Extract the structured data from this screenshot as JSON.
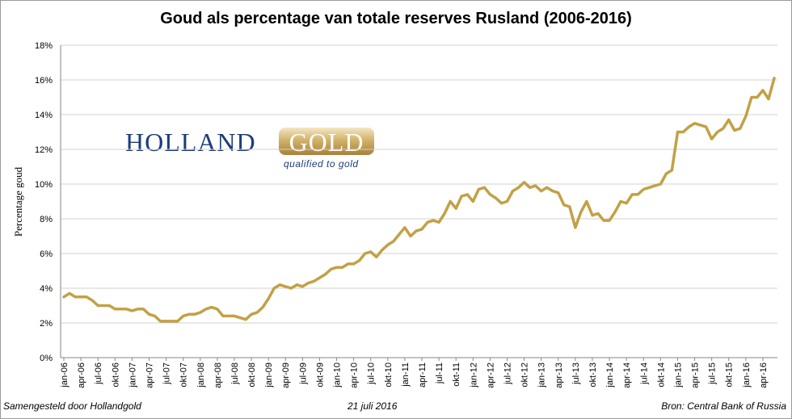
{
  "chart_data": {
    "type": "line",
    "title": "Goud als percentage van totale reserves Rusland (2006-2016)",
    "ylabel": "Percentage goud",
    "xlabel": "",
    "ylim": [
      0,
      18
    ],
    "yticks": [
      0,
      2,
      4,
      6,
      8,
      10,
      12,
      14,
      16,
      18
    ],
    "ytick_labels": [
      "0%",
      "2%",
      "4%",
      "6%",
      "8%",
      "10%",
      "12%",
      "14%",
      "16%",
      "18%"
    ],
    "grid": "horizontal",
    "line_color": "#c2a146",
    "xtick_labels": [
      "jan-06",
      "apr-06",
      "jul-06",
      "okt-06",
      "jan-07",
      "apr-07",
      "jul-07",
      "okt-07",
      "jan-08",
      "apr-08",
      "jul-08",
      "okt-08",
      "jan-09",
      "apr-09",
      "jul-09",
      "okt-09",
      "jan-10",
      "apr-10",
      "jul-10",
      "okt-10",
      "jan-11",
      "apr-11",
      "jul-11",
      "okt-11",
      "jan-12",
      "apr-12",
      "jul-12",
      "okt-12",
      "jan-13",
      "apr-13",
      "jul-13",
      "okt-13",
      "jan-14",
      "apr-14",
      "jul-14",
      "okt-14",
      "jan-15",
      "apr-15",
      "jul-15",
      "okt-15",
      "jan-16",
      "apr-16"
    ],
    "series": [
      {
        "values": [
          3.5,
          3.7,
          3.5,
          3.5,
          3.5,
          3.3,
          3.0,
          3.0,
          3.0,
          2.8,
          2.8,
          2.8,
          2.7,
          2.8,
          2.8,
          2.5,
          2.4,
          2.1,
          2.1,
          2.1,
          2.1,
          2.4,
          2.5,
          2.5,
          2.6,
          2.8,
          2.9,
          2.8,
          2.4,
          2.4,
          2.4,
          2.3,
          2.2,
          2.5,
          2.6,
          2.9,
          3.4,
          4.0,
          4.2,
          4.1,
          4.0,
          4.2,
          4.1,
          4.3,
          4.4,
          4.6,
          4.8,
          5.1,
          5.2,
          5.2,
          5.4,
          5.4,
          5.6,
          6.0,
          6.1,
          5.8,
          6.2,
          6.5,
          6.7,
          7.1,
          7.5,
          7.0,
          7.3,
          7.4,
          7.8,
          7.9,
          7.8,
          8.3,
          9.0,
          8.6,
          9.3,
          9.4,
          9.0,
          9.7,
          9.8,
          9.4,
          9.2,
          8.9,
          9.0,
          9.6,
          9.8,
          10.1,
          9.8,
          9.9,
          9.6,
          9.8,
          9.6,
          9.5,
          8.8,
          8.7,
          7.5,
          8.4,
          9.0,
          8.2,
          8.3,
          7.9,
          7.9,
          8.4,
          9.0,
          8.9,
          9.4,
          9.4,
          9.7,
          9.8,
          9.9,
          10.0,
          10.6,
          10.8,
          13.0,
          13.0,
          13.3,
          13.5,
          13.4,
          13.3,
          12.6,
          13.0,
          13.2,
          13.7,
          13.1,
          13.2,
          13.9,
          15.0,
          15.0,
          15.4,
          14.9,
          16.1
        ]
      }
    ]
  },
  "logo": {
    "word1": "HOLLAND",
    "word2": "GOLD",
    "tagline": "qualified to gold"
  },
  "footer": {
    "left": "Samengesteld door Hollandgold",
    "center": "21 juli 2016",
    "right": "Bron: Central Bank of Russia"
  }
}
